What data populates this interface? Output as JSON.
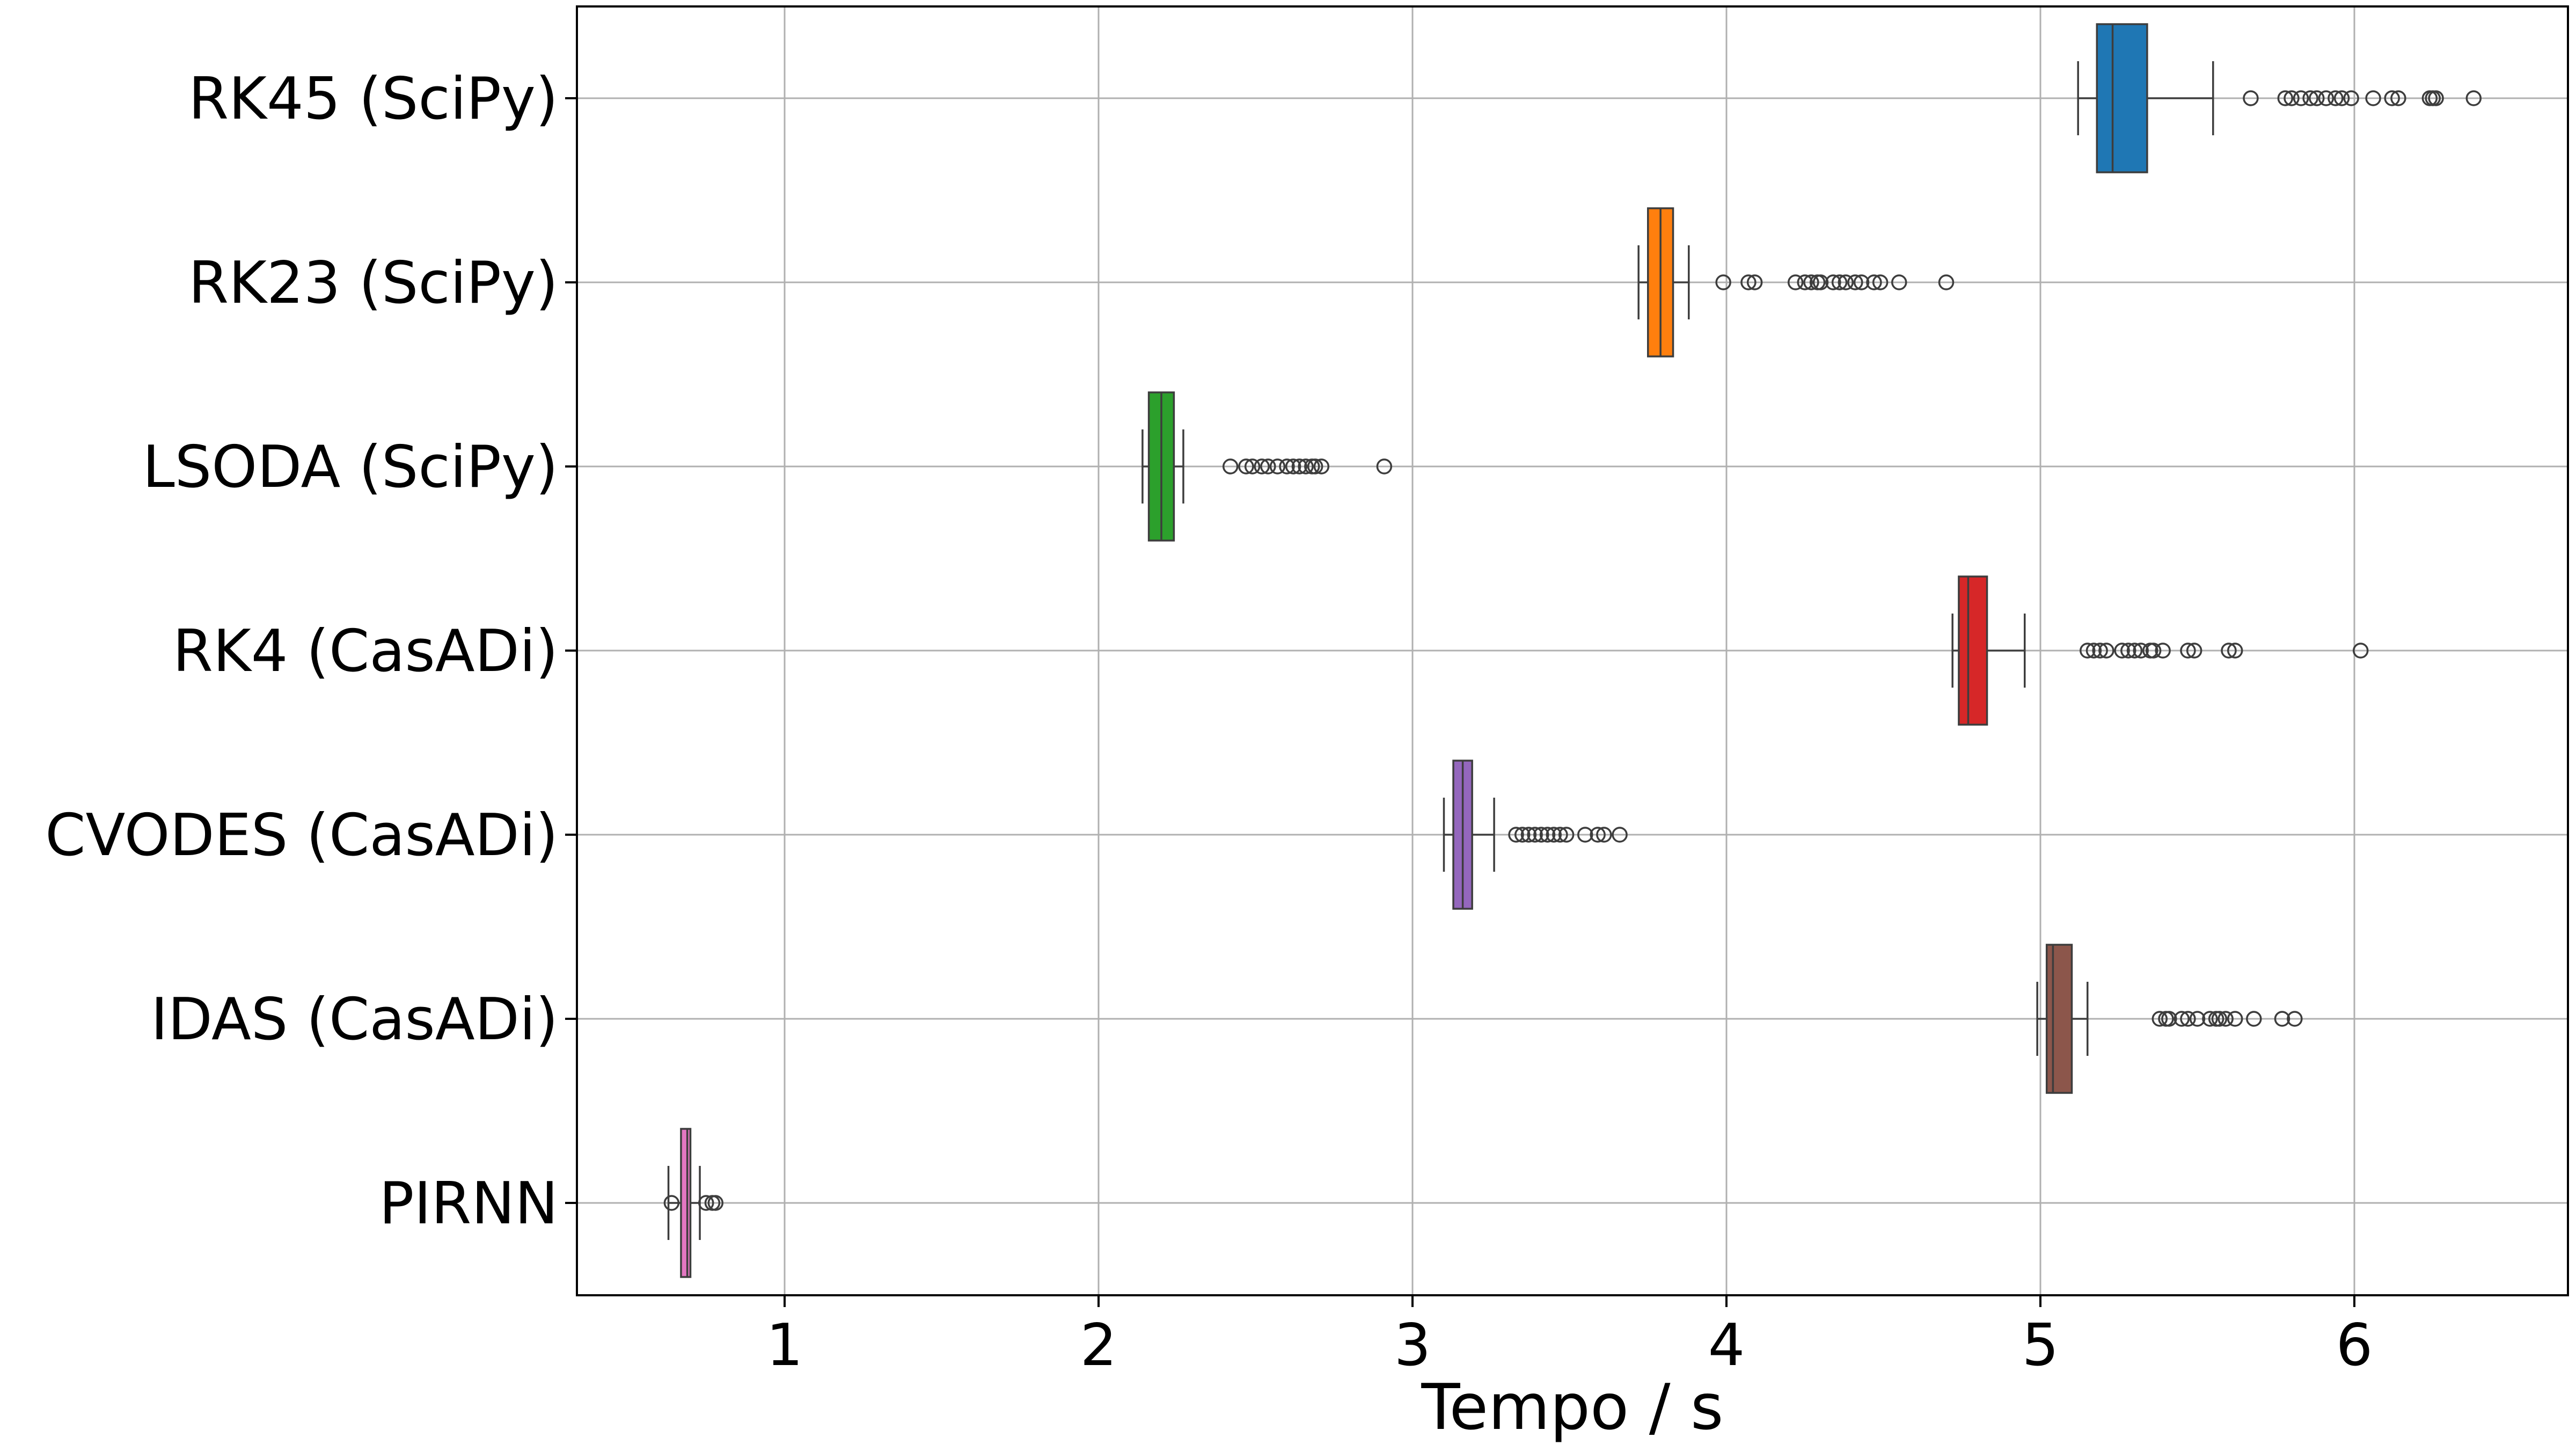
{
  "chart_data": {
    "type": "box",
    "orientation": "horizontal",
    "title": "",
    "xlabel": "Tempo / s",
    "ylabel": "",
    "xlim": [
      0.33,
      6.67
    ],
    "xticks": [
      "1",
      "2",
      "3",
      "4",
      "5",
      "6"
    ],
    "grid": true,
    "legend": "none",
    "categories": [
      {
        "name": "RK45 (SciPy)",
        "color": "#1f77b4",
        "whislo": 5.12,
        "q1": 5.18,
        "median": 5.23,
        "q3": 5.34,
        "whishi": 5.55,
        "fliers": [
          5.67,
          5.78,
          5.8,
          5.83,
          5.86,
          5.88,
          5.91,
          5.94,
          5.96,
          5.99,
          6.06,
          6.12,
          6.14,
          6.24,
          6.25,
          6.26,
          6.38
        ]
      },
      {
        "name": "RK23 (SciPy)",
        "color": "#ff7f0e",
        "whislo": 3.72,
        "q1": 3.75,
        "median": 3.79,
        "q3": 3.83,
        "whishi": 3.88,
        "fliers": [
          3.99,
          4.07,
          4.09,
          4.22,
          4.25,
          4.27,
          4.29,
          4.3,
          4.34,
          4.36,
          4.38,
          4.41,
          4.43,
          4.47,
          4.49,
          4.55,
          4.7
        ]
      },
      {
        "name": "LSODA (SciPy)",
        "color": "#2ca02c",
        "whislo": 2.14,
        "q1": 2.16,
        "median": 2.2,
        "q3": 2.24,
        "whishi": 2.27,
        "fliers": [
          2.42,
          2.47,
          2.49,
          2.52,
          2.54,
          2.57,
          2.6,
          2.62,
          2.64,
          2.66,
          2.68,
          2.69,
          2.71,
          2.91
        ]
      },
      {
        "name": "RK4 (CasADi)",
        "color": "#d62728",
        "whislo": 4.72,
        "q1": 4.74,
        "median": 4.77,
        "q3": 4.83,
        "whishi": 4.95,
        "fliers": [
          5.15,
          5.17,
          5.19,
          5.21,
          5.26,
          5.28,
          5.3,
          5.32,
          5.35,
          5.36,
          5.39,
          5.47,
          5.49,
          5.6,
          5.62,
          6.02
        ]
      },
      {
        "name": "CVODES (CasADi)",
        "color": "#9467bd",
        "whislo": 3.1,
        "q1": 3.13,
        "median": 3.16,
        "q3": 3.19,
        "whishi": 3.26,
        "fliers": [
          3.33,
          3.35,
          3.37,
          3.39,
          3.41,
          3.43,
          3.45,
          3.47,
          3.49,
          3.55,
          3.59,
          3.61,
          3.66
        ]
      },
      {
        "name": "IDAS (CasADi)",
        "color": "#8c564b",
        "whislo": 4.99,
        "q1": 5.02,
        "median": 5.04,
        "q3": 5.1,
        "whishi": 5.15,
        "fliers": [
          5.38,
          5.4,
          5.41,
          5.45,
          5.47,
          5.5,
          5.54,
          5.56,
          5.57,
          5.59,
          5.62,
          5.68,
          5.77,
          5.81
        ]
      },
      {
        "name": "PIRNN",
        "color": "#e377c2",
        "whislo": 0.63,
        "q1": 0.67,
        "median": 0.69,
        "q3": 0.7,
        "whishi": 0.73,
        "fliers": [
          0.64,
          0.75,
          0.77,
          0.78
        ]
      }
    ]
  }
}
